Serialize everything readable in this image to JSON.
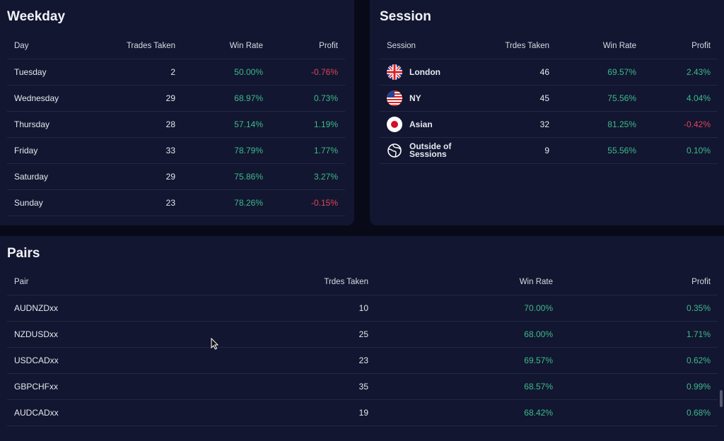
{
  "weekday": {
    "title": "Weekday",
    "headers": [
      "Day",
      "Trades Taken",
      "Win Rate",
      "Profit"
    ],
    "rows": [
      {
        "day": "Tuesday",
        "trades": "2",
        "win": "50.00%",
        "profit": "-0.76%",
        "neg": true
      },
      {
        "day": "Wednesday",
        "trades": "29",
        "win": "68.97%",
        "profit": "0.73%"
      },
      {
        "day": "Thursday",
        "trades": "28",
        "win": "57.14%",
        "profit": "1.19%"
      },
      {
        "day": "Friday",
        "trades": "33",
        "win": "78.79%",
        "profit": "1.77%"
      },
      {
        "day": "Saturday",
        "trades": "29",
        "win": "75.86%",
        "profit": "3.27%"
      },
      {
        "day": "Sunday",
        "trades": "23",
        "win": "78.26%",
        "profit": "-0.15%",
        "neg": true
      }
    ]
  },
  "session": {
    "title": "Session",
    "headers": [
      "Session",
      "Trdes Taken",
      "Win Rate",
      "Profit"
    ],
    "rows": [
      {
        "icon": "uk-flag-icon",
        "name": "London",
        "trades": "46",
        "win": "69.57%",
        "profit": "2.43%"
      },
      {
        "icon": "us-flag-icon",
        "name": "NY",
        "trades": "45",
        "win": "75.56%",
        "profit": "4.04%"
      },
      {
        "icon": "japan-flag-icon",
        "name": "Asian",
        "trades": "32",
        "win": "81.25%",
        "profit": "-0.42%",
        "neg": true
      },
      {
        "icon": "globe-icon",
        "name": "Outside of Sessions",
        "trades": "9",
        "win": "55.56%",
        "profit": "0.10%"
      }
    ]
  },
  "pairs": {
    "title": "Pairs",
    "headers": [
      "Pair",
      "Trdes Taken",
      "Win Rate",
      "Profit"
    ],
    "rows": [
      {
        "pair": "AUDNZDxx",
        "trades": "10",
        "win": "70.00%",
        "profit": "0.35%"
      },
      {
        "pair": "NZDUSDxx",
        "trades": "25",
        "win": "68.00%",
        "profit": "1.71%"
      },
      {
        "pair": "USDCADxx",
        "trades": "23",
        "win": "69.57%",
        "profit": "0.62%"
      },
      {
        "pair": "GBPCHFxx",
        "trades": "35",
        "win": "68.57%",
        "profit": "0.99%"
      },
      {
        "pair": "AUDCADxx",
        "trades": "19",
        "win": "68.42%",
        "profit": "0.68%"
      }
    ]
  },
  "colors": {
    "positive": "#3dbb8b",
    "negative": "#e0445a"
  }
}
